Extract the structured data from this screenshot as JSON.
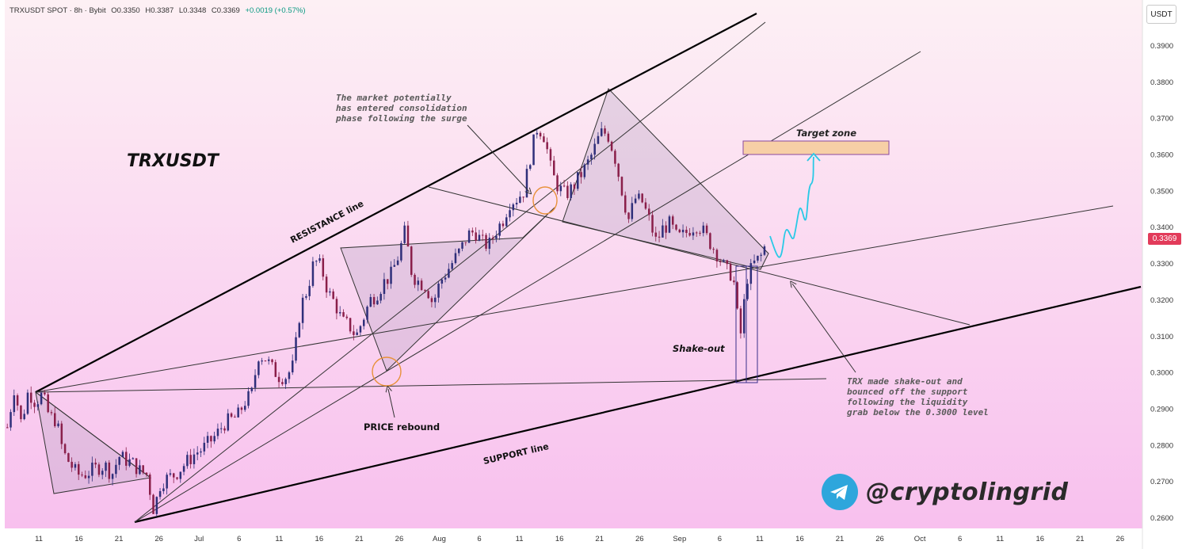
{
  "header": {
    "symbol": "TRXUSDT SPOT · 8h · Bybit",
    "open": "O0.3350",
    "high": "H0.3387",
    "low": "L0.3348",
    "close": "C0.3369",
    "change": "+0.0019 (+0.57%)"
  },
  "currency_button": "USDT",
  "current_price": "0.3369",
  "watermark": "@cryptolingrid",
  "colors": {
    "background_top": "#fdf0f4",
    "background_bottom": "#f8c0ee",
    "bull": "#2f2f7a",
    "bear": "#8a1f4a",
    "accent_red": "#e23b5a",
    "target_zone": "#f7cfa6",
    "arrow": "#29c9e6",
    "telegram": "#2ea6dc"
  },
  "chart_data": {
    "type": "candlestick",
    "title": "TRXUSDT",
    "timeframe": "8h",
    "exchange": "Bybit",
    "ylim": [
      0.255,
      0.402
    ],
    "y_ticks": [
      "0.3900",
      "0.3800",
      "0.3700",
      "0.3600",
      "0.3500",
      "0.3400",
      "0.3300",
      "0.3200",
      "0.3100",
      "0.3000",
      "0.2900",
      "0.2800",
      "0.2700",
      "0.2600"
    ],
    "x_ticks": [
      "11",
      "16",
      "21",
      "26",
      "Jul",
      "6",
      "11",
      "16",
      "21",
      "26",
      "Aug",
      "6",
      "11",
      "16",
      "21",
      "26",
      "Sep",
      "6",
      "11",
      "16",
      "21",
      "26",
      "Oct",
      "6",
      "11",
      "16",
      "21",
      "26"
    ],
    "price_path": [
      [
        0.285,
        0.296
      ],
      [
        0.286,
        0.295
      ],
      [
        0.292,
        0.294
      ],
      [
        0.288,
        0.287
      ],
      [
        0.278,
        0.275
      ],
      [
        0.272,
        0.272
      ],
      [
        0.273,
        0.274
      ],
      [
        0.2745,
        0.272
      ],
      [
        0.277,
        0.276
      ],
      [
        0.275,
        0.273
      ],
      [
        0.272,
        0.262
      ],
      [
        0.27,
        0.271
      ],
      [
        0.272,
        0.274
      ],
      [
        0.276,
        0.278
      ],
      [
        0.279,
        0.281
      ],
      [
        0.283,
        0.286
      ],
      [
        0.287,
        0.288
      ],
      [
        0.292,
        0.294
      ],
      [
        0.305,
        0.304
      ],
      [
        0.301,
        0.299
      ],
      [
        0.299,
        0.302
      ],
      [
        0.318,
        0.323
      ],
      [
        0.331,
        0.329
      ],
      [
        0.322,
        0.319
      ],
      [
        0.314,
        0.313
      ],
      [
        0.31,
        0.315
      ],
      [
        0.32,
        0.322
      ],
      [
        0.325,
        0.327
      ],
      [
        0.332,
        0.339
      ],
      [
        0.327,
        0.325
      ],
      [
        0.324,
        0.319
      ],
      [
        0.325,
        0.328
      ],
      [
        0.331,
        0.334
      ],
      [
        0.338,
        0.339
      ],
      [
        0.336,
        0.335
      ],
      [
        0.339,
        0.342
      ],
      [
        0.347,
        0.348
      ],
      [
        0.35,
        0.36
      ],
      [
        0.368,
        0.365
      ],
      [
        0.355,
        0.351
      ],
      [
        0.349,
        0.351
      ],
      [
        0.354,
        0.357
      ],
      [
        0.361,
        0.366
      ],
      [
        0.366,
        0.36
      ],
      [
        0.351,
        0.342
      ],
      [
        0.348,
        0.347
      ],
      [
        0.342,
        0.336
      ],
      [
        0.34,
        0.341
      ],
      [
        0.337,
        0.338
      ],
      [
        0.34,
        0.341
      ],
      [
        0.338,
        0.335
      ],
      [
        0.332,
        0.328
      ],
      [
        0.327,
        0.309
      ],
      [
        0.326,
        0.33
      ],
      [
        0.332,
        0.3369
      ]
    ],
    "annotations": [
      {
        "type": "text",
        "label": "TRXUSDT"
      },
      {
        "type": "text",
        "label": "RESISTANCE line"
      },
      {
        "type": "text",
        "label": "SUPPORT line"
      },
      {
        "type": "text",
        "label": "The market potentially has entered consolidation phase following the surge"
      },
      {
        "type": "text",
        "label": "Target zone",
        "range": [
          0.36,
          0.364
        ]
      },
      {
        "type": "text",
        "label": "Shake-out"
      },
      {
        "type": "text",
        "label": "PRICE rebound",
        "price": 0.3005
      },
      {
        "type": "text",
        "label": "TRX made shake-out and bounced off the support following the liquidity grab below the 0.3000 level"
      }
    ],
    "horizontal_level": 0.298,
    "grid": false,
    "legend": "none"
  },
  "labels": {
    "chart_title": "TRXUSDT",
    "resistance": "RESISTANCE line",
    "support": "SUPPORT line",
    "consolidation_1": "The market potentially",
    "consolidation_2": "has entered consolidation",
    "consolidation_3": "phase following the surge",
    "target_zone": "Target zone",
    "shakeout": "Shake-out",
    "rebound": "PRICE rebound",
    "note_1": "TRX made shake-out and",
    "note_2": "bounced off the support",
    "note_3": "following the liquidity",
    "note_4": "grab below the 0.3000 level"
  }
}
